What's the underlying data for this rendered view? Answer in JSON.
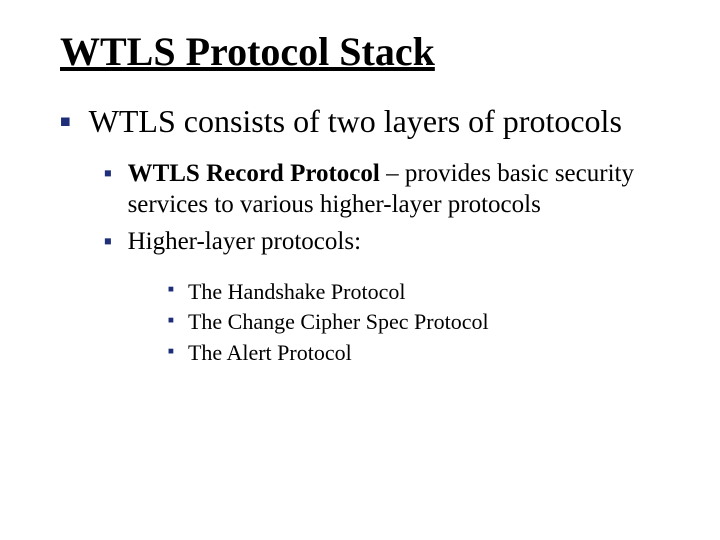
{
  "colors": {
    "bullet": "#1f2e79",
    "text": "#000000",
    "background": "#ffffff"
  },
  "typography": {
    "title_fontsize": 40,
    "level1_fontsize": 32,
    "level2_fontsize": 25,
    "level3_fontsize": 22,
    "font_family": "Times New Roman"
  },
  "title": "WTLS Protocol Stack",
  "level1_text": "WTLS consists of two layers of protocols",
  "level2_item1_bold": "WTLS Record Protocol",
  "level2_item1_rest": " – provides basic security services to various higher-layer protocols",
  "level2_item2": "Higher-layer protocols:",
  "level3_item1": "The Handshake Protocol",
  "level3_item2": "The Change Cipher Spec Protocol",
  "level3_item3": "The Alert Protocol",
  "bullet_glyph": "■"
}
